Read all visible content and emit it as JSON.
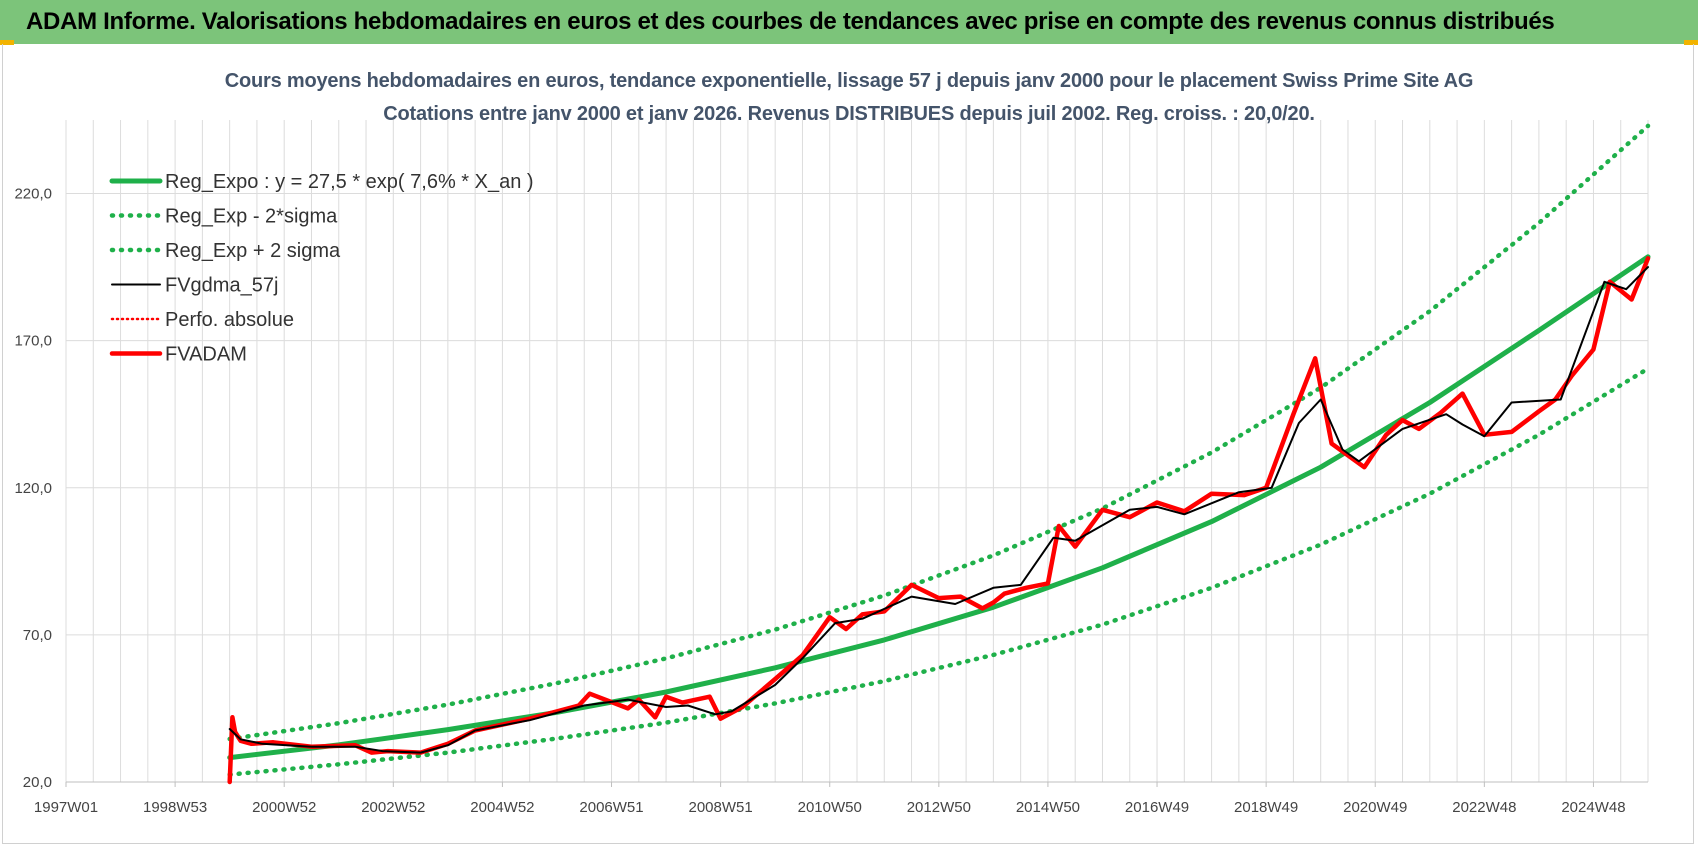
{
  "header": {
    "title": "ADAM Informe. Valorisations hebdomadaires en euros et des courbes de tendances avec prise en compte des revenus connus distribués"
  },
  "colors": {
    "banner": "#7cc47a",
    "green": "#1fb04a",
    "red": "#ff0000",
    "black": "#000000",
    "grid": "#dcdcdc"
  },
  "chart_data": {
    "type": "line",
    "title": "Cours moyens hebdomadaires en euros, tendance exponentielle, lissage 57 j depuis janv 2000 pour le placement Swiss Prime Site AG",
    "subtitle": "Cotations entre janv 2000 et janv 2026. Revenus DISTRIBUES depuis juil 2002. Reg. croiss. : 20,0/20.",
    "x_tick_labels": [
      "1997W01",
      "1998W53",
      "2000W52",
      "2002W52",
      "2004W52",
      "2006W51",
      "2008W51",
      "2010W50",
      "2012W50",
      "2014W50",
      "2016W49",
      "2018W49",
      "2020W49",
      "2022W48",
      "2024W48"
    ],
    "x_tick_years": [
      1997.0,
      1999.0,
      2001.0,
      2003.0,
      2005.0,
      2007.0,
      2009.0,
      2011.0,
      2013.0,
      2015.0,
      2017.0,
      2019.0,
      2021.0,
      2023.0,
      2025.0
    ],
    "xlim": [
      1997.0,
      2026.0
    ],
    "ylim": [
      20,
      245
    ],
    "y_ticks": [
      20,
      70,
      120,
      170,
      220
    ],
    "y_tick_labels": [
      "20,0",
      "70,0",
      "120,0",
      "170,0",
      "220,0"
    ],
    "grid": true,
    "legend_position": "top-left",
    "legend": [
      {
        "label": "Reg_Expo : y = 27,5 * exp( 7,6% *  X_an )",
        "style": "solid-green"
      },
      {
        "label": "Reg_Exp - 2*sigma",
        "style": "dotted-green"
      },
      {
        "label": "Reg_Exp + 2 sigma",
        "style": "dotted-green"
      },
      {
        "label": "FVgdma_57j",
        "style": "solid-black"
      },
      {
        "label": "Perfo. absolue",
        "style": "dotted-red"
      },
      {
        "label": "FVADAM",
        "style": "solid-red"
      }
    ],
    "series": [
      {
        "name": "Reg_Expo : y = 27,5 * exp( 7,6% *  X_an )",
        "x": [
          2000.0,
          2002.0,
          2004.0,
          2006.0,
          2008.0,
          2010.0,
          2012.0,
          2014.0,
          2016.0,
          2018.0,
          2020.0,
          2022.0,
          2024.0,
          2026.0
        ],
        "values": [
          28.3,
          32.6,
          37.8,
          43.7,
          50.6,
          58.8,
          68.3,
          79.4,
          92.8,
          108.5,
          127.0,
          149.0,
          173.5,
          198.5
        ]
      },
      {
        "name": "Reg_Exp - 2*sigma",
        "x": [
          2000.0,
          2002.0,
          2004.0,
          2006.0,
          2008.0,
          2010.0,
          2012.0,
          2014.0,
          2016.0,
          2018.0,
          2020.0,
          2022.0,
          2024.0,
          2026.0
        ],
        "values": [
          22.5,
          26.0,
          30.0,
          34.8,
          40.2,
          46.7,
          54.3,
          63.2,
          73.5,
          86.0,
          100.7,
          118.0,
          138.0,
          160.5
        ]
      },
      {
        "name": "Reg_Exp + 2 sigma",
        "x": [
          2000.0,
          2002.0,
          2004.0,
          2006.0,
          2008.0,
          2010.0,
          2012.0,
          2014.0,
          2016.0,
          2018.0,
          2020.0,
          2022.0,
          2024.0,
          2026.0
        ],
        "values": [
          34.6,
          40.0,
          46.3,
          53.6,
          62.0,
          71.8,
          83.4,
          97.0,
          113.0,
          132.0,
          154.0,
          180.0,
          210.0,
          243.0
        ]
      },
      {
        "name": "FVgdma_57j",
        "x": [
          2000.0,
          2000.2,
          2000.6,
          2001.5,
          2002.3,
          2002.8,
          2003.5,
          2004.0,
          2004.5,
          2005.5,
          2006.5,
          2007.3,
          2008.0,
          2008.4,
          2008.9,
          2009.2,
          2010.0,
          2010.5,
          2011.1,
          2011.6,
          2012.5,
          2013.3,
          2014.0,
          2014.5,
          2015.1,
          2015.5,
          2016.5,
          2017.0,
          2017.5,
          2018.5,
          2019.1,
          2019.6,
          2020.0,
          2020.4,
          2020.7,
          2021.5,
          2022.3,
          2022.6,
          2023.0,
          2023.5,
          2024.4,
          2024.8,
          2025.2,
          2025.6,
          2026.0
        ],
        "values": [
          38.0,
          34.5,
          33.0,
          32.0,
          32.0,
          30.5,
          30.0,
          32.5,
          37.5,
          41.0,
          46.0,
          48.0,
          45.5,
          46.0,
          43.0,
          44.0,
          53.0,
          62.0,
          74.0,
          75.5,
          83.0,
          80.5,
          86.0,
          87.0,
          103.0,
          102.0,
          112.5,
          113.5,
          111.0,
          118.5,
          120.0,
          142.0,
          150.0,
          133.0,
          129.0,
          140.0,
          145.0,
          141.5,
          137.5,
          149.0,
          150.0,
          170.0,
          190.0,
          187.5,
          195.0
        ]
      },
      {
        "name": "FVADAM",
        "x": [
          2000.0,
          2000.05,
          2000.1,
          2000.2,
          2000.4,
          2000.8,
          2001.5,
          2002.3,
          2002.6,
          2002.9,
          2003.5,
          2004.0,
          2004.5,
          2005.5,
          2006.4,
          2006.6,
          2007.3,
          2007.5,
          2007.8,
          2008.0,
          2008.3,
          2008.8,
          2009.0,
          2009.4,
          2010.0,
          2010.5,
          2011.0,
          2011.3,
          2011.6,
          2012.0,
          2012.5,
          2013.0,
          2013.4,
          2013.8,
          2014.0,
          2014.2,
          2014.6,
          2015.0,
          2015.2,
          2015.5,
          2016.0,
          2016.5,
          2017.0,
          2017.5,
          2018.0,
          2018.6,
          2019.0,
          2019.5,
          2019.9,
          2020.2,
          2020.5,
          2020.8,
          2021.2,
          2021.5,
          2021.8,
          2022.2,
          2022.6,
          2023.0,
          2023.5,
          2024.0,
          2024.3,
          2024.6,
          2025.0,
          2025.3,
          2025.7,
          2026.0
        ],
        "values": [
          20.0,
          42.0,
          37.0,
          34.0,
          33.0,
          33.5,
          32.0,
          32.5,
          30.0,
          30.5,
          30.0,
          33.0,
          37.5,
          41.5,
          46.0,
          50.0,
          45.0,
          48.0,
          42.0,
          49.0,
          47.0,
          49.0,
          41.5,
          45.5,
          55.0,
          63.0,
          76.0,
          72.0,
          77.0,
          78.0,
          87.0,
          82.5,
          83.0,
          79.0,
          81.0,
          84.0,
          86.0,
          87.5,
          107.0,
          100.0,
          112.5,
          110.0,
          115.0,
          112.0,
          118.0,
          117.5,
          120.0,
          145.0,
          164.0,
          135.0,
          131.0,
          127.0,
          138.0,
          143.0,
          140.0,
          145.5,
          152.0,
          138.0,
          139.0,
          146.0,
          150.0,
          158.0,
          167.0,
          190.0,
          184.0,
          198.0
        ]
      }
    ]
  }
}
